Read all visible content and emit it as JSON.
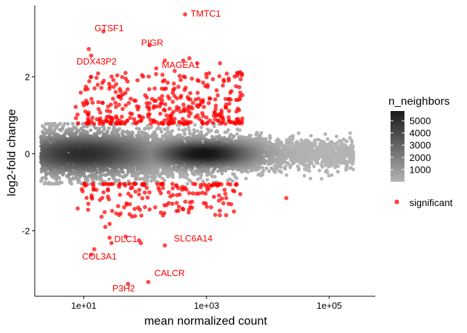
{
  "chart_data": {
    "type": "scatter",
    "title": "",
    "xlabel": "mean normalized count",
    "ylabel": "log2-fold change",
    "xscale": "log10",
    "xlim_log10": [
      0.2,
      5.75
    ],
    "ylim": [
      -3.7,
      3.85
    ],
    "x_ticks": [
      {
        "log10": 1,
        "label": "1e+01"
      },
      {
        "log10": 3,
        "label": "1e+03"
      },
      {
        "log10": 5,
        "label": "1e+05"
      }
    ],
    "y_ticks": [
      {
        "value": -2,
        "label": "-2"
      },
      {
        "value": 0,
        "label": "0"
      },
      {
        "value": 2,
        "label": "2"
      }
    ],
    "density_legend": {
      "title": "n_neighbors",
      "ticks": [
        {
          "value": 1000,
          "label": "1000"
        },
        {
          "value": 2000,
          "label": "2000"
        },
        {
          "value": 3000,
          "label": "3000"
        },
        {
          "value": 4000,
          "label": "4000"
        },
        {
          "value": 5000,
          "label": "5000"
        }
      ],
      "range": [
        0,
        5800
      ],
      "color_low": "#b4b4b4",
      "color_high": "#1a1a1a"
    },
    "significant_legend": {
      "label": "significant",
      "color": "#ff0000"
    },
    "labeled_genes": [
      {
        "gene": "TMTC1",
        "log10_mean": 2.65,
        "lfc": 3.62
      },
      {
        "gene": "GTSF1",
        "log10_mean": 1.32,
        "lfc": 3.18
      },
      {
        "gene": "PIGR",
        "log10_mean": 2.07,
        "lfc": 2.82
      },
      {
        "gene": "DDX43P2",
        "log10_mean": 1.08,
        "lfc": 2.72
      },
      {
        "gene": "MAGEA1",
        "log10_mean": 2.32,
        "lfc": 2.42
      },
      {
        "gene": "DLC1",
        "log10_mean": 1.42,
        "lfc": -2.18
      },
      {
        "gene": "SLC6A14",
        "log10_mean": 2.32,
        "lfc": -2.38
      },
      {
        "gene": "COL3A1",
        "log10_mean": 1.17,
        "lfc": -2.48
      },
      {
        "gene": "CALCR",
        "log10_mean": 2.05,
        "lfc": -3.33
      },
      {
        "gene": "P3H2",
        "log10_mean": 1.72,
        "lfc": -3.38
      }
    ],
    "significant_points": [
      [
        2.65,
        3.62
      ],
      [
        1.32,
        3.18
      ],
      [
        2.07,
        2.82
      ],
      [
        1.08,
        2.72
      ],
      [
        2.32,
        2.42
      ],
      [
        1.12,
        2.55
      ],
      [
        2.72,
        2.48
      ],
      [
        2.62,
        2.42
      ],
      [
        2.85,
        2.35
      ],
      [
        3.22,
        2.35
      ],
      [
        3.55,
        2.12
      ],
      [
        3.52,
        2.1
      ],
      [
        3.28,
        1.92
      ],
      [
        2.18,
        2.22
      ],
      [
        2.48,
        2.15
      ],
      [
        1.42,
        -2.18
      ],
      [
        2.32,
        -2.38
      ],
      [
        1.17,
        -2.48
      ],
      [
        2.05,
        -3.33
      ],
      [
        1.72,
        -3.38
      ],
      [
        1.12,
        -2.62
      ],
      [
        1.45,
        -2.32
      ],
      [
        1.68,
        -2.15
      ],
      [
        1.9,
        -2.25
      ],
      [
        1.93,
        -2.32
      ],
      [
        1.42,
        -1.82
      ],
      [
        1.35,
        -1.9
      ],
      [
        0.9,
        -1.42
      ],
      [
        3.32,
        -1.15
      ],
      [
        4.3,
        -1.15
      ],
      [
        3.55,
        -1.05
      ],
      [
        3.12,
        -1.12
      ],
      [
        1.6,
        -1.55
      ]
    ],
    "significant_cluster_up": {
      "count": 360,
      "log10_range": [
        0.5,
        3.6
      ],
      "lfc_min": 0.78,
      "lfc_max": 2.1
    },
    "significant_cluster_down": {
      "count": 170,
      "log10_range": [
        0.65,
        3.5
      ],
      "lfc_min": -1.65,
      "lfc_max": -0.78
    },
    "background_cloud": {
      "count": 6500,
      "log10_range": [
        0.2,
        5.4
      ],
      "lfc_sd": 0.27
    }
  }
}
